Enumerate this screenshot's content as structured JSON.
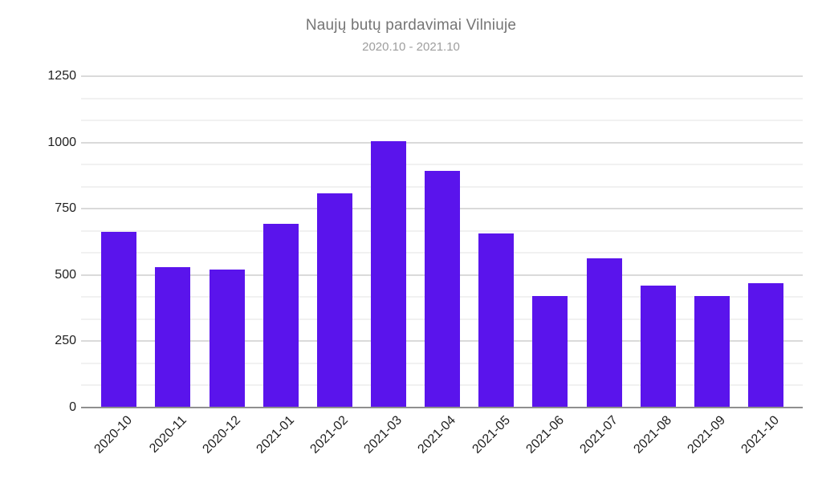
{
  "chart_data": {
    "type": "bar",
    "title": "Naujų butų pardavimai Vilniuje",
    "subtitle": "2020.10 - 2021.10",
    "categories": [
      "2020-10",
      "2020-11",
      "2020-12",
      "2021-01",
      "2021-02",
      "2021-03",
      "2021-04",
      "2021-05",
      "2021-06",
      "2021-07",
      "2021-08",
      "2021-09",
      "2021-10"
    ],
    "values": [
      663,
      531,
      522,
      693,
      807,
      1006,
      894,
      656,
      422,
      563,
      459,
      422,
      470
    ],
    "xlabel": "",
    "ylabel": "",
    "ylim": [
      0,
      1250
    ],
    "yticks": [
      0,
      250,
      500,
      750,
      1000,
      1250
    ],
    "minor_gridlines_between_majors": 2,
    "grid": true,
    "legend": "none",
    "x_tick_rotation_deg": -45,
    "colors": {
      "bar": "#5a14ec",
      "title": "#757575",
      "subtitle": "#9e9e9e",
      "axis_text": "#1f1f1f",
      "major_gridline": "#dadada",
      "minor_gridline": "#f1f1f1",
      "baseline": "#8f8f8f",
      "background": "#ffffff"
    }
  }
}
